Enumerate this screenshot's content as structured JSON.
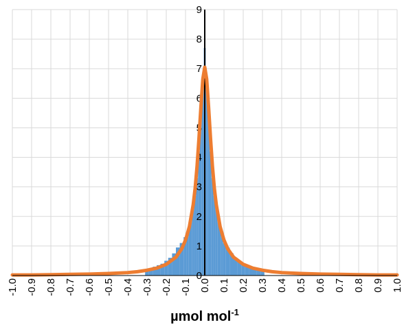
{
  "chart_data": {
    "type": "bar",
    "xlabel_main": "µmol mol",
    "xlabel_sup": "-1",
    "xlim": [
      -1.0,
      1.0
    ],
    "ylim": [
      0,
      9
    ],
    "grid": true,
    "x_ticks": [
      "-1.0",
      "-0.9",
      "-0.8",
      "-0.7",
      "-0.6",
      "-0.5",
      "-0.4",
      "-0.3",
      "-0.2",
      "-0.1",
      "0.0",
      "0.1",
      "0.2",
      "0.3",
      "0.4",
      "0.5",
      "0.6",
      "0.7",
      "0.8",
      "0.9",
      "1.0"
    ],
    "y_ticks": [
      "0",
      "1",
      "2",
      "3",
      "4",
      "5",
      "6",
      "7",
      "8",
      "9"
    ],
    "colors": {
      "histogram": "#5b9bd5",
      "fit": "#ed7d31",
      "grid": "#d9d9d9",
      "axis": "#000000"
    },
    "series": [
      {
        "type": "histogram",
        "x": [
          -0.3,
          -0.28,
          -0.26,
          -0.24,
          -0.22,
          -0.2,
          -0.18,
          -0.16,
          -0.14,
          -0.12,
          -0.1,
          -0.09,
          -0.08,
          -0.07,
          -0.06,
          -0.05,
          -0.04,
          -0.03,
          -0.02,
          -0.01,
          0.0,
          0.01,
          0.02,
          0.03,
          0.04,
          0.05,
          0.06,
          0.07,
          0.08,
          0.09,
          0.1,
          0.12,
          0.14,
          0.16,
          0.18,
          0.2,
          0.22,
          0.24,
          0.26,
          0.28,
          0.3
        ],
        "values": [
          0.2,
          0.25,
          0.3,
          0.35,
          0.4,
          0.5,
          0.6,
          0.75,
          0.95,
          1.1,
          1.3,
          1.45,
          1.65,
          1.9,
          2.25,
          2.7,
          3.3,
          4.2,
          5.4,
          6.7,
          7.7,
          6.7,
          5.4,
          4.2,
          3.3,
          2.7,
          2.25,
          1.9,
          1.65,
          1.4,
          1.1,
          0.95,
          0.75,
          0.6,
          0.5,
          0.4,
          0.35,
          0.3,
          0.25,
          0.2,
          0.18
        ]
      },
      {
        "type": "line",
        "x": [
          -1.0,
          -0.9,
          -0.8,
          -0.7,
          -0.6,
          -0.5,
          -0.4,
          -0.35,
          -0.3,
          -0.25,
          -0.2,
          -0.15,
          -0.12,
          -0.1,
          -0.08,
          -0.06,
          -0.05,
          -0.04,
          -0.03,
          -0.02,
          -0.01,
          0.0,
          0.01,
          0.02,
          0.03,
          0.04,
          0.05,
          0.06,
          0.08,
          0.1,
          0.12,
          0.15,
          0.2,
          0.25,
          0.3,
          0.35,
          0.4,
          0.5,
          0.6,
          0.7,
          0.8,
          0.9,
          1.0
        ],
        "values": [
          0.02,
          0.02,
          0.03,
          0.04,
          0.05,
          0.07,
          0.1,
          0.13,
          0.18,
          0.25,
          0.38,
          0.62,
          0.9,
          1.2,
          1.65,
          2.4,
          2.95,
          3.7,
          4.65,
          5.7,
          6.65,
          7.05,
          6.65,
          5.7,
          4.65,
          3.7,
          2.95,
          2.4,
          1.65,
          1.2,
          0.9,
          0.62,
          0.38,
          0.25,
          0.18,
          0.13,
          0.1,
          0.07,
          0.05,
          0.04,
          0.03,
          0.02,
          0.02
        ]
      }
    ]
  }
}
